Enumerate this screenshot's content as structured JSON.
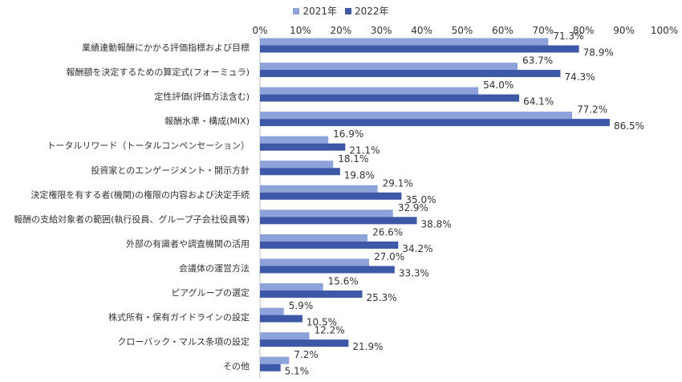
{
  "chart_data": {
    "type": "bar",
    "orientation": "horizontal",
    "title": "",
    "xlabel": "",
    "ylabel": "",
    "xlim": [
      0,
      100
    ],
    "x_ticks": [
      "0%",
      "10%",
      "20%",
      "30%",
      "40%",
      "50%",
      "60%",
      "70%",
      "80%",
      "90%",
      "100%"
    ],
    "legend_position": "top-center",
    "categories": [
      "業績連動報酬にかかる評価指標および目標",
      "報酬額を決定するための算定式(フォーミュラ)",
      "定性評価(評価方法含む)",
      "報酬水準・構成(MIX)",
      "トータルリワード（トータルコンペンセーション）",
      "投資家とのエンゲージメント・開示方針",
      "決定権限を有する者(機関)の権限の内容および決定手続",
      "報酬の支給対象者の範囲(執行役員、グループ子会社役員等)",
      "外部の有識者や調査機関の活用",
      "会議体の運営方法",
      "ピアグループの選定",
      "株式所有・保有ガイドラインの設定",
      "クローバック・マルス条項の設定",
      "その他"
    ],
    "series": [
      {
        "name": "2021年",
        "color": "#8EA2DA",
        "values": [
          71.3,
          63.7,
          54.0,
          77.2,
          16.9,
          18.1,
          29.1,
          32.9,
          26.6,
          27.0,
          15.6,
          5.9,
          12.2,
          7.2
        ],
        "labels": [
          "71.3%",
          "63.7%",
          "54.0%",
          "77.2%",
          "16.9%",
          "18.1%",
          "29.1%",
          "32.9%",
          "26.6%",
          "27.0%",
          "15.6%",
          "5.9%",
          "12.2%",
          "7.2%"
        ]
      },
      {
        "name": "2022年",
        "color": "#3D58A6",
        "values": [
          78.9,
          74.3,
          64.1,
          86.5,
          21.1,
          19.8,
          35.0,
          38.8,
          34.2,
          33.3,
          25.3,
          10.5,
          21.9,
          5.1
        ],
        "labels": [
          "78.9%",
          "74.3%",
          "64.1%",
          "86.5%",
          "21.1%",
          "19.8%",
          "35.0%",
          "38.8%",
          "34.2%",
          "33.3%",
          "25.3%",
          "10.5%",
          "21.9%",
          "5.1%"
        ]
      }
    ]
  }
}
